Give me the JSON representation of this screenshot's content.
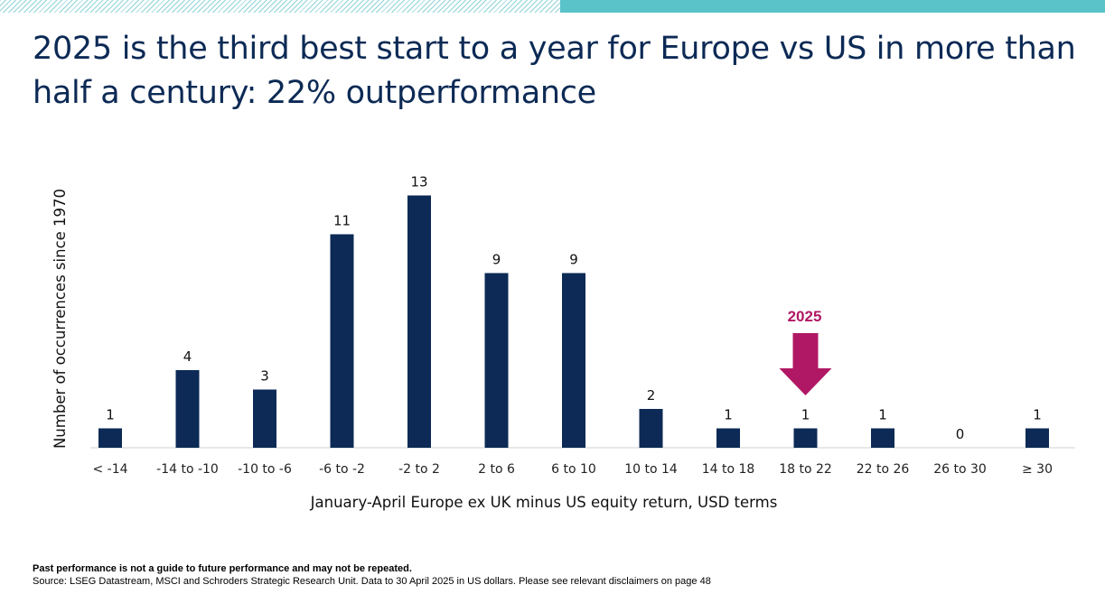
{
  "colors": {
    "bar": "#0c2a55",
    "title": "#0c2a55",
    "highlight": "#b01865",
    "band": "#59c3c9"
  },
  "title": "2025 is the third best start to a year for Europe vs US in more than half a century: 22% outperformance",
  "chart_data": {
    "type": "bar",
    "categories": [
      "< -14",
      "-14 to -10",
      "-10 to -6",
      "-6 to -2",
      "-2 to 2",
      "2 to 6",
      "6 to 10",
      "10 to 14",
      "14 to 18",
      "18 to 22",
      "22 to 26",
      "26 to 30",
      "≥ 30"
    ],
    "values": [
      1,
      4,
      3,
      11,
      13,
      9,
      9,
      2,
      1,
      1,
      1,
      0,
      1
    ],
    "xlabel": "January-April Europe ex UK minus US equity return, USD terms",
    "ylabel": "Number of occurrences since 1970",
    "ylim": [
      0,
      13
    ],
    "grid": false,
    "annotation": {
      "label": "2025",
      "category": "18 to 22",
      "marker": "down-arrow-icon"
    }
  },
  "footnote": {
    "disclaimer": "Past performance is not a guide to future performance and may not be repeated.",
    "source": "Source: LSEG Datastream, MSCI and Schroders Strategic Research Unit. Data to 30 April 2025 in US dollars. Please see relevant disclaimers on page 48"
  }
}
